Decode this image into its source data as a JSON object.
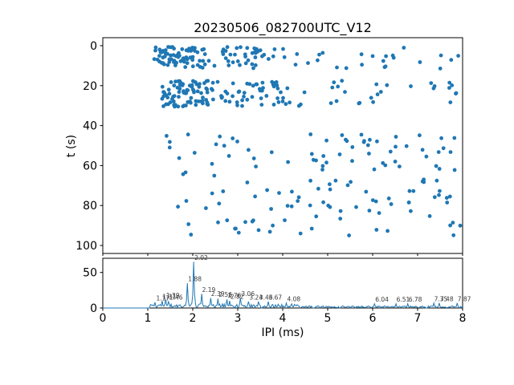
{
  "title": "20230506_082700UTC_V12",
  "background": "#ffffff",
  "accent_color": "#1f77b4",
  "chart_data": [
    {
      "type": "scatter",
      "title": "",
      "xlabel": "",
      "ylabel": "t (s)",
      "xlim": [
        0,
        8
      ],
      "ylim": [
        100,
        0
      ],
      "yticks": [
        0,
        20,
        40,
        60,
        80,
        100
      ],
      "grid": false,
      "marker_color": "#1f77b4",
      "description": "Raster of click IPI values over time; dense bands near t=0-11 s and t=18-30 s, empty gap t=31-43 s, sparse points t=44-95 s",
      "clusters": [
        {
          "ipi": [
            1.1,
            2.4
          ],
          "t": [
            0.5,
            11.5
          ],
          "n": 75
        },
        {
          "ipi": [
            2.4,
            3.6
          ],
          "t": [
            0.5,
            11.5
          ],
          "n": 35
        },
        {
          "ipi": [
            3.6,
            8.0
          ],
          "t": [
            0.5,
            11.5
          ],
          "n": 28
        },
        {
          "ipi": [
            1.3,
            2.5
          ],
          "t": [
            17.5,
            30.5
          ],
          "n": 85
        },
        {
          "ipi": [
            2.5,
            4.0
          ],
          "t": [
            17.5,
            30.5
          ],
          "n": 45
        },
        {
          "ipi": [
            4.0,
            8.0
          ],
          "t": [
            17.5,
            30.5
          ],
          "n": 32
        },
        {
          "ipi": [
            1.4,
            8.0
          ],
          "t": [
            44,
            63
          ],
          "n": 60
        },
        {
          "ipi": [
            1.4,
            8.0
          ],
          "t": [
            63,
            95
          ],
          "n": 80
        }
      ]
    },
    {
      "type": "line",
      "title": "",
      "xlabel": "IPI (ms)",
      "ylabel": "",
      "xlim": [
        0,
        8
      ],
      "ylim": [
        0,
        70
      ],
      "yticks": [
        0,
        50
      ],
      "xticks": [
        0,
        1,
        2,
        3,
        4,
        5,
        6,
        7,
        8
      ],
      "grid": false,
      "line_color": "#1f77b4",
      "signal_start_x": 1.05,
      "noise_regions": [
        {
          "range": [
            1.05,
            4.35
          ],
          "amp": 6
        },
        {
          "range": [
            4.35,
            8.0
          ],
          "amp": 3
        }
      ],
      "peaks": [
        {
          "x": 1.17,
          "h": 8,
          "label": "1.17"
        },
        {
          "x": 1.31,
          "h": 10,
          "label": "1.31"
        },
        {
          "x": 1.39,
          "h": 12,
          "label": "1.39"
        },
        {
          "x": 1.46,
          "h": 9,
          "label": "1.46"
        },
        {
          "x": 1.88,
          "h": 35,
          "label": "1.88"
        },
        {
          "x": 2.02,
          "h": 65,
          "label": "2.02"
        },
        {
          "x": 2.19,
          "h": 20,
          "label": "2.19"
        },
        {
          "x": 2.39,
          "h": 14,
          "label": "2.39"
        },
        {
          "x": 2.56,
          "h": 13,
          "label": "2.56"
        },
        {
          "x": 2.76,
          "h": 12,
          "label": "2.76"
        },
        {
          "x": 2.82,
          "h": 10,
          "label": "2.82"
        },
        {
          "x": 3.06,
          "h": 14,
          "label": "3.06"
        },
        {
          "x": 3.24,
          "h": 9,
          "label": "3.24"
        },
        {
          "x": 3.46,
          "h": 9,
          "label": "3.46"
        },
        {
          "x": 3.67,
          "h": 9,
          "label": "3.67"
        },
        {
          "x": 4.08,
          "h": 7,
          "label": "4.08"
        },
        {
          "x": 6.04,
          "h": 6,
          "label": "6.04"
        },
        {
          "x": 6.51,
          "h": 6,
          "label": "6.51"
        },
        {
          "x": 6.78,
          "h": 6,
          "label": "6.78"
        },
        {
          "x": 7.35,
          "h": 7,
          "label": "7.35"
        },
        {
          "x": 7.48,
          "h": 7,
          "label": "7.48"
        },
        {
          "x": 7.87,
          "h": 7,
          "label": "7.87"
        }
      ]
    }
  ]
}
